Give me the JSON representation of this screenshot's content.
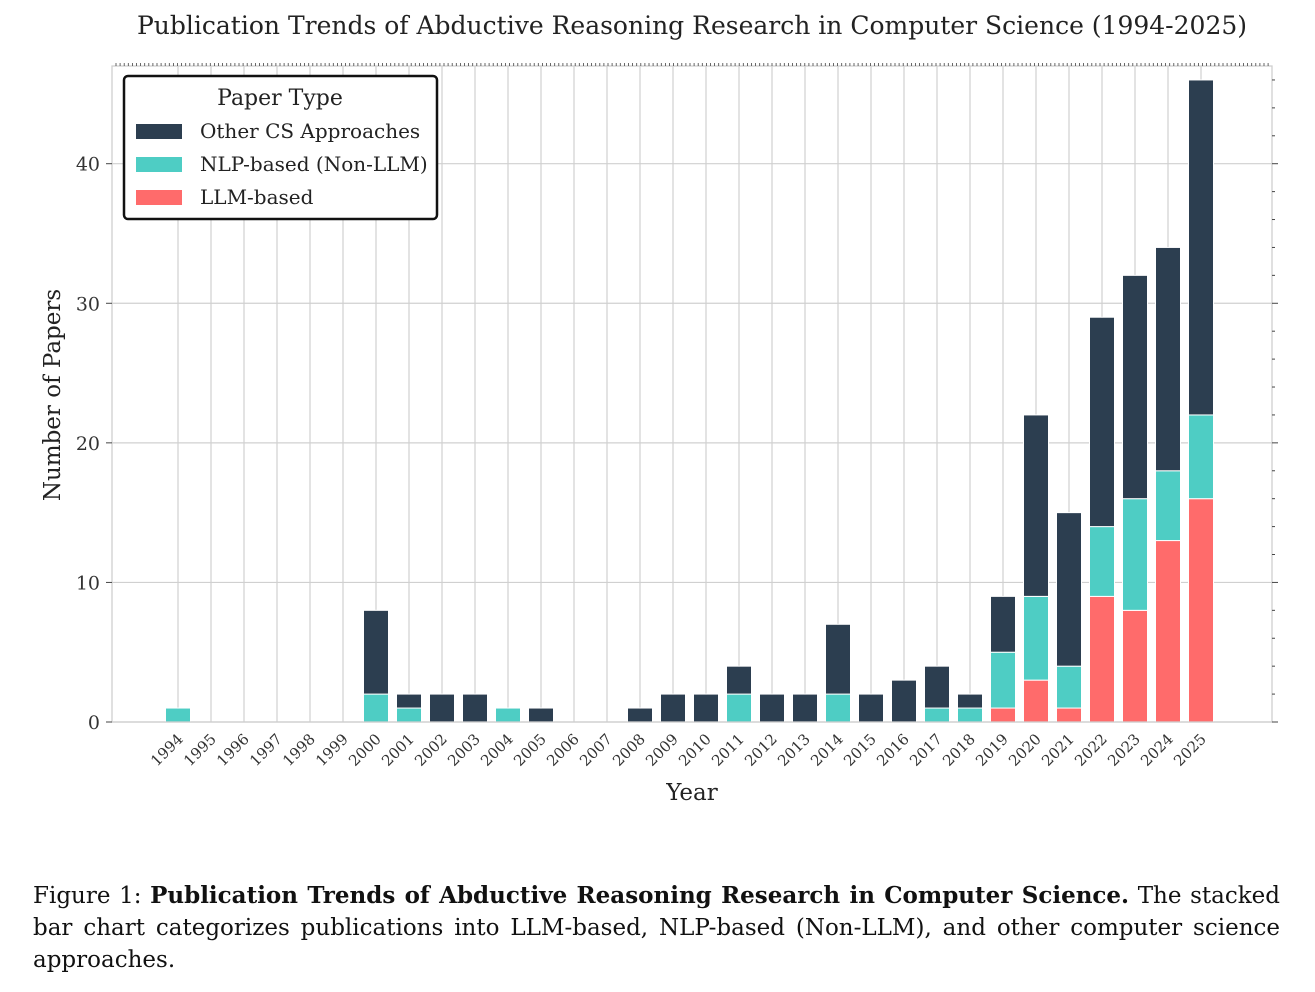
{
  "chart_data": {
    "type": "bar",
    "stacked": true,
    "title": "Publication Trends of Abductive Reasoning Research in Computer Science (1994-2025)",
    "xlabel": "Year",
    "ylabel": "Number of Papers",
    "ylim": [
      0,
      47
    ],
    "yticks": [
      0,
      10,
      20,
      30,
      40
    ],
    "grid": true,
    "legend": {
      "title": "Paper Type",
      "placement": "top-left",
      "order": [
        "Other CS Approaches",
        "NLP-based (Non-LLM)",
        "LLM-based"
      ]
    },
    "categories": [
      "1994",
      "1995",
      "1996",
      "1997",
      "1998",
      "1999",
      "2000",
      "2001",
      "2002",
      "2003",
      "2004",
      "2005",
      "2006",
      "2007",
      "2008",
      "2009",
      "2010",
      "2011",
      "2012",
      "2013",
      "2014",
      "2015",
      "2016",
      "2017",
      "2018",
      "2019",
      "2020",
      "2021",
      "2022",
      "2023",
      "2024",
      "2025"
    ],
    "series": [
      {
        "name": "LLM-based",
        "color": "#ff6b6b",
        "values": [
          0,
          0,
          0,
          0,
          0,
          0,
          0,
          0,
          0,
          0,
          0,
          0,
          0,
          0,
          0,
          0,
          0,
          0,
          0,
          0,
          0,
          0,
          0,
          0,
          0,
          1,
          3,
          1,
          9,
          8,
          13,
          16
        ]
      },
      {
        "name": "NLP-based (Non-LLM)",
        "color": "#4ecdc4",
        "values": [
          1,
          0,
          0,
          0,
          0,
          0,
          2,
          1,
          0,
          0,
          1,
          0,
          0,
          0,
          0,
          0,
          0,
          2,
          0,
          0,
          2,
          0,
          0,
          1,
          1,
          4,
          6,
          3,
          5,
          8,
          5,
          6
        ]
      },
      {
        "name": "Other CS Approaches",
        "color": "#2c3e50",
        "values": [
          0,
          0,
          0,
          0,
          0,
          0,
          6,
          1,
          2,
          2,
          0,
          1,
          0,
          0,
          1,
          2,
          2,
          2,
          2,
          2,
          5,
          2,
          3,
          3,
          1,
          4,
          13,
          11,
          15,
          16,
          16,
          24
        ]
      }
    ]
  },
  "caption": {
    "label": "Figure 1:",
    "title": "Publication Trends of Abductive Reasoning Research in Computer Science.",
    "text": "The stacked bar chart categorizes publications into LLM-based, NLP-based (Non-LLM), and other computer science approaches."
  }
}
